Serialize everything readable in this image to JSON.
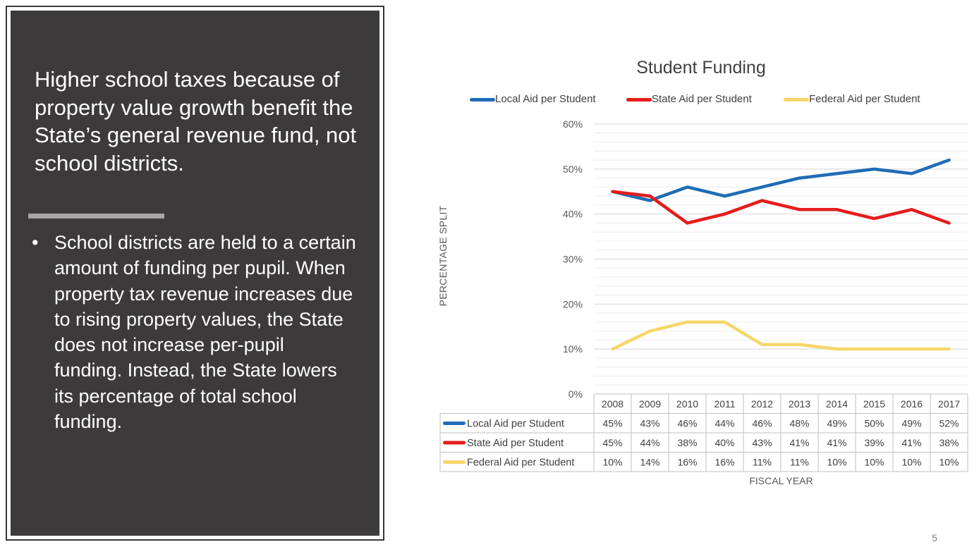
{
  "left": {
    "headline": "Higher school taxes because of property value growth benefit the State’s general revenue fund, not school districts.",
    "bullet": "School districts are held to a certain amount of funding per pupil. When property tax revenue increases due to rising property values, the State does not increase per-pupil funding. Instead, the State lowers its percentage of total school funding."
  },
  "page_number": "5",
  "colors": {
    "panel": "#3d3a3b",
    "local": "#1f6cb5",
    "state": "#e51c1c",
    "federal": "#f6d66b"
  },
  "chart_data": {
    "type": "line",
    "title": "Student Funding",
    "xlabel": "FISCAL YEAR",
    "ylabel": "PERCENTAGE SPLIT",
    "x": [
      "2008",
      "2009",
      "2010",
      "2011",
      "2012",
      "2013",
      "2014",
      "2015",
      "2016",
      "2017"
    ],
    "ylim": [
      0,
      60
    ],
    "yticks": [
      "0%",
      "10%",
      "20%",
      "30%",
      "40%",
      "50%",
      "60%"
    ],
    "grid": true,
    "legend_position": "top",
    "series": [
      {
        "name": "Local Aid per Student",
        "color": "#1f6cb5",
        "values": [
          45,
          43,
          46,
          44,
          46,
          48,
          49,
          50,
          49,
          52
        ],
        "labels": [
          "45%",
          "43%",
          "46%",
          "44%",
          "46%",
          "48%",
          "49%",
          "50%",
          "49%",
          "52%"
        ]
      },
      {
        "name": "State Aid per Student",
        "color": "#e51c1c",
        "values": [
          45,
          44,
          38,
          40,
          43,
          41,
          41,
          39,
          41,
          38
        ],
        "labels": [
          "45%",
          "44%",
          "38%",
          "40%",
          "43%",
          "41%",
          "41%",
          "39%",
          "41%",
          "38%"
        ]
      },
      {
        "name": "Federal Aid per Student",
        "color": "#f6d66b",
        "values": [
          10,
          14,
          16,
          16,
          11,
          11,
          10,
          10,
          10,
          10
        ],
        "labels": [
          "10%",
          "14%",
          "16%",
          "16%",
          "11%",
          "11%",
          "10%",
          "10%",
          "10%",
          "10%"
        ]
      }
    ]
  }
}
